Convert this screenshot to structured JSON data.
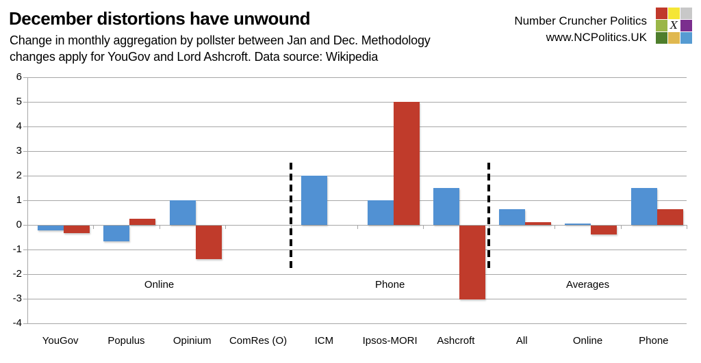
{
  "header": {
    "title": "December distortions have unwound",
    "subtitle_line1": "Change in monthly aggregation by pollster between Jan and Dec. Methodology",
    "subtitle_line2": "changes apply for YouGov and Lord Ashcroft. Data source: Wikipedia",
    "brand": {
      "name": "Number Cruncher Politics",
      "url": "www.NCPolitics.UK",
      "logo_cells": [
        [
          "#c0392b",
          "#f5e636",
          "#c8c8c8"
        ],
        [
          "#9ab648",
          "X",
          "#7b2e8e"
        ],
        [
          "#4e7e2c",
          "#e0b84f",
          "#569bd2"
        ]
      ]
    }
  },
  "chart_data": {
    "type": "bar",
    "title": "December distortions have unwound",
    "categories": [
      "YouGov",
      "Populus",
      "Opinium",
      "ComRes (O)",
      "ICM",
      "Ipsos-MORI",
      "Ashcroft",
      "All",
      "Online",
      "Phone"
    ],
    "series": [
      {
        "name": "series_blue",
        "color": "#5191d3",
        "values": [
          -0.2,
          -0.65,
          1.0,
          0,
          2.0,
          1.0,
          1.5,
          0.65,
          0.05,
          1.5
        ]
      },
      {
        "name": "series_red",
        "color": "#c03b2b",
        "values": [
          -0.3,
          0.25,
          -1.35,
          0,
          0,
          5.0,
          -3.0,
          0.1,
          -0.35,
          0.65
        ]
      }
    ],
    "groups": [
      {
        "label": "Online",
        "from": 0,
        "to": 3
      },
      {
        "label": "Phone",
        "from": 4,
        "to": 6
      },
      {
        "label": "Averages",
        "from": 7,
        "to": 9
      }
    ],
    "separators_after": [
      3,
      6
    ],
    "y_ticks": [
      6,
      5,
      4,
      3,
      2,
      1,
      0,
      -1,
      -2,
      -3,
      -4
    ],
    "ylim": [
      -4,
      6
    ],
    "grid": true,
    "legend": "none",
    "grid_color": "#a6a6a6"
  }
}
